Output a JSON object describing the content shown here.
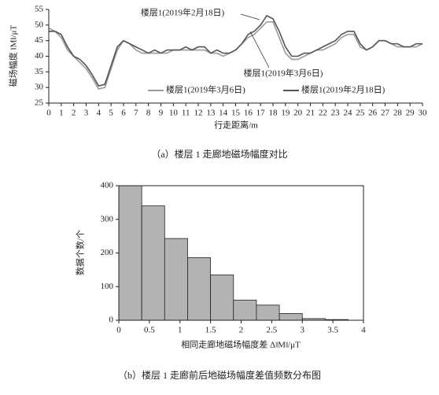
{
  "chart_data": [
    {
      "type": "line",
      "caption": "（a）楼层 1 走廊地磁场幅度对比",
      "x_label": "行走距离/m",
      "y_label": "磁场幅度 ‖M‖/μT",
      "annotations": [
        "楼层1(2019年2月18日)",
        "楼层1(2019年3月6日)"
      ],
      "legend": "lower right",
      "x": [
        0,
        0.5,
        1,
        1.5,
        2,
        2.5,
        3,
        3.5,
        4,
        4.5,
        5,
        5.5,
        6,
        6.5,
        7,
        7.5,
        8,
        8.5,
        9,
        9.5,
        10,
        10.5,
        11,
        11.5,
        12,
        12.5,
        13,
        13.5,
        14,
        14.5,
        15,
        15.5,
        16,
        16.5,
        17,
        17.5,
        18,
        18.5,
        19,
        19.5,
        20,
        20.5,
        21,
        21.5,
        22,
        22.5,
        23,
        23.5,
        24,
        24.5,
        25,
        25.5,
        26,
        26.5,
        27,
        27.5,
        28,
        28.5,
        29,
        29.5,
        30
      ],
      "series": [
        {
          "name": "楼层1(2019年3月6日)",
          "color": "#9a9a9a",
          "values": [
            49,
            48,
            46,
            42,
            40,
            38,
            36,
            33,
            29.5,
            30,
            36,
            42,
            45,
            44,
            42,
            41,
            41,
            41,
            41,
            41,
            42,
            42,
            42,
            42,
            42,
            42,
            41,
            41,
            40,
            41,
            42,
            44,
            46,
            47,
            49,
            51,
            51,
            46,
            41,
            39,
            39,
            40,
            41,
            42,
            42,
            43,
            44,
            46,
            47,
            47,
            43,
            42,
            43,
            45,
            45,
            44,
            43,
            43,
            43,
            43,
            44
          ]
        },
        {
          "name": "楼层1(2019年2月18日)",
          "color": "#555555",
          "values": [
            48,
            48,
            47,
            43,
            40,
            39,
            37,
            34,
            30.5,
            31,
            37,
            43,
            45,
            44,
            43,
            42,
            41,
            42,
            41,
            42,
            42,
            42,
            43,
            42,
            43,
            43,
            41,
            42,
            41,
            41,
            42,
            44,
            47,
            48,
            50,
            53,
            52,
            48,
            43,
            40,
            40,
            41,
            41,
            42,
            43,
            44,
            45,
            47,
            48,
            48,
            44,
            42,
            43,
            45,
            45,
            44,
            44,
            43,
            43,
            44,
            44
          ]
        }
      ],
      "xlim": [
        0,
        30
      ],
      "xticks": [
        0,
        1,
        2,
        3,
        4,
        5,
        6,
        7,
        8,
        9,
        10,
        11,
        12,
        13,
        14,
        15,
        16,
        17,
        18,
        19,
        20,
        21,
        22,
        23,
        24,
        25,
        26,
        27,
        28,
        29,
        30
      ],
      "ylim": [
        25,
        55
      ],
      "yticks": [
        25,
        30,
        35,
        40,
        45,
        50,
        55
      ],
      "box": false
    },
    {
      "type": "histogram",
      "caption": "（b）楼层 1 走廊前后地磁场幅度差值频数分布图",
      "x_label": "相同走廊地磁场幅度差 Δ‖M‖/μT",
      "y_label": "数据个数/个",
      "color": "#b3b3b3",
      "bins": [
        0,
        0.375,
        0.75,
        1.125,
        1.5,
        1.875,
        2.25,
        2.625,
        3,
        3.375,
        3.75
      ],
      "counts": [
        400,
        340,
        243,
        186,
        135,
        60,
        45,
        20,
        5,
        2
      ],
      "xlim": [
        0,
        4
      ],
      "xticks": [
        0,
        0.5,
        1,
        1.5,
        2,
        2.5,
        3,
        3.5,
        4
      ],
      "ylim": [
        0,
        400
      ],
      "yticks": [
        0,
        100,
        200,
        300,
        400
      ],
      "box": true
    }
  ]
}
